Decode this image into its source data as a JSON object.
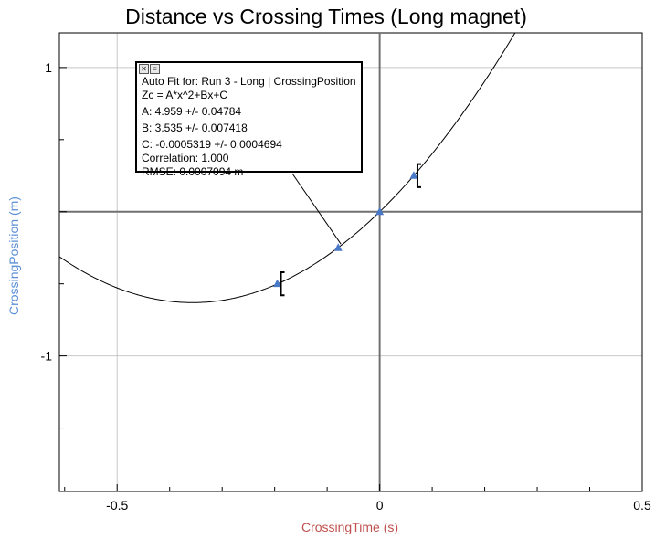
{
  "chart_data": {
    "type": "scatter",
    "title": "Distance vs Crossing Times (Long magnet)",
    "xlabel": "CrossingTime (s)",
    "ylabel": "CrossingPosition (m)",
    "xlim": [
      -0.61,
      0.5
    ],
    "ylim": [
      -1.94,
      1.24
    ],
    "xticks_labeled": [
      -0.5,
      0,
      0.5
    ],
    "xtick_labels": [
      "-0.5",
      "0",
      "0.5"
    ],
    "yticks_labeled": [
      1,
      -1
    ],
    "ytick_labels": [
      "1",
      "-1"
    ],
    "grid": true,
    "series": [
      {
        "points": [
          {
            "x": -0.195,
            "y": -0.5,
            "error": 0.08
          },
          {
            "x": -0.079,
            "y": -0.25,
            "error": null
          },
          {
            "x": 0.0,
            "y": 0.0,
            "error": null
          },
          {
            "x": 0.065,
            "y": 0.25,
            "error": 0.08
          }
        ],
        "color": "#4a78c8"
      }
    ],
    "fit": {
      "equation": "Zc = A*x^2+Bx+C",
      "A": 4.959,
      "B": 3.535,
      "C": -0.0005319,
      "color": "#000000"
    }
  },
  "fit_box": {
    "lines": [
      "Auto Fit for: Run 3 - Long | CrossingPosition",
      "Zc = A*x^2+Bx+C",
      "A: 4.959 +/- 0.04784",
      "B: 3.535 +/- 0.007418",
      "C: -0.0005319 +/- 0.0004694",
      "Correlation: 1.000",
      "RMSE: 0.0007094 m"
    ],
    "close_glyph": "✕",
    "menu_glyph": "≡"
  }
}
